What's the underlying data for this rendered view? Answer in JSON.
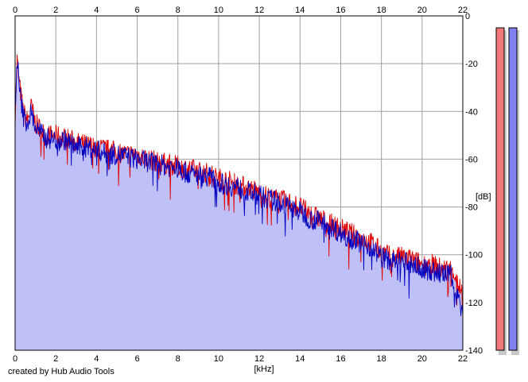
{
  "footer_text": "created by Hub Audio Tools",
  "chart_data": {
    "type": "area",
    "xlabel": "[kHz]",
    "ylabel": "[dB]",
    "xlim": [
      0,
      22
    ],
    "ylim": [
      -140,
      0
    ],
    "x_ticks": [
      0,
      2,
      4,
      6,
      8,
      10,
      12,
      14,
      16,
      18,
      20,
      22
    ],
    "y_ticks": [
      0,
      -20,
      -40,
      -60,
      -80,
      -100,
      -120,
      -140
    ],
    "grid": true,
    "colors": {
      "fill": "#c0c0f8",
      "grid": "#a0a0a0",
      "red_series": "#e00000",
      "blue_series": "#0000c0",
      "red_meter": "#f07878",
      "blue_meter": "#8080f0"
    },
    "series": [
      {
        "channel": "red",
        "x": [
          0,
          0.1,
          0.2,
          0.4,
          0.6,
          0.8,
          1,
          1.5,
          2,
          2.5,
          3,
          3.5,
          4,
          4.5,
          5,
          5.5,
          6,
          6.5,
          7,
          7.5,
          8,
          8.5,
          9,
          9.5,
          10,
          10.5,
          11,
          11.5,
          12,
          12.5,
          13,
          13.5,
          14,
          14.5,
          15,
          15.5,
          16,
          16.5,
          17,
          17.5,
          18,
          18.5,
          19,
          19.5,
          20,
          20.5,
          21,
          21.5,
          22
        ],
        "values": [
          -42,
          -18,
          -28,
          -40,
          -44,
          -38,
          -45,
          -50,
          -50,
          -51,
          -53,
          -54,
          -55,
          -56,
          -57,
          -58,
          -58,
          -60,
          -61,
          -62,
          -63,
          -64,
          -65,
          -66,
          -68,
          -69,
          -71,
          -72,
          -74,
          -76,
          -77,
          -78,
          -80,
          -83,
          -85,
          -87,
          -89,
          -91,
          -93,
          -95,
          -99,
          -101,
          -101,
          -102,
          -104,
          -104,
          -106,
          -106,
          -117
        ]
      },
      {
        "channel": "blue",
        "x": [
          0,
          0.1,
          0.2,
          0.4,
          0.6,
          0.8,
          1,
          1.5,
          2,
          2.5,
          3,
          3.5,
          4,
          4.5,
          5,
          5.5,
          6,
          6.5,
          7,
          7.5,
          8,
          8.5,
          9,
          9.5,
          10,
          10.5,
          11,
          11.5,
          12,
          12.5,
          13,
          13.5,
          14,
          14.5,
          15,
          15.5,
          16,
          16.5,
          17,
          17.5,
          18,
          18.5,
          19,
          19.5,
          20,
          20.5,
          21,
          21.5,
          22
        ],
        "values": [
          -40,
          -17,
          -30,
          -42,
          -45,
          -40,
          -47,
          -51,
          -52,
          -52,
          -55,
          -55,
          -56,
          -58,
          -58,
          -59,
          -60,
          -61,
          -62,
          -63,
          -64,
          -66,
          -67,
          -67,
          -70,
          -71,
          -72,
          -74,
          -75,
          -77,
          -78,
          -80,
          -82,
          -85,
          -86,
          -88,
          -91,
          -93,
          -95,
          -97,
          -101,
          -103,
          -103,
          -104,
          -106,
          -107,
          -108,
          -109,
          -125
        ]
      }
    ],
    "meters": [
      {
        "channel": "red",
        "top": -5,
        "bottom": -140
      },
      {
        "channel": "blue",
        "top": -5,
        "bottom": -140
      }
    ]
  }
}
